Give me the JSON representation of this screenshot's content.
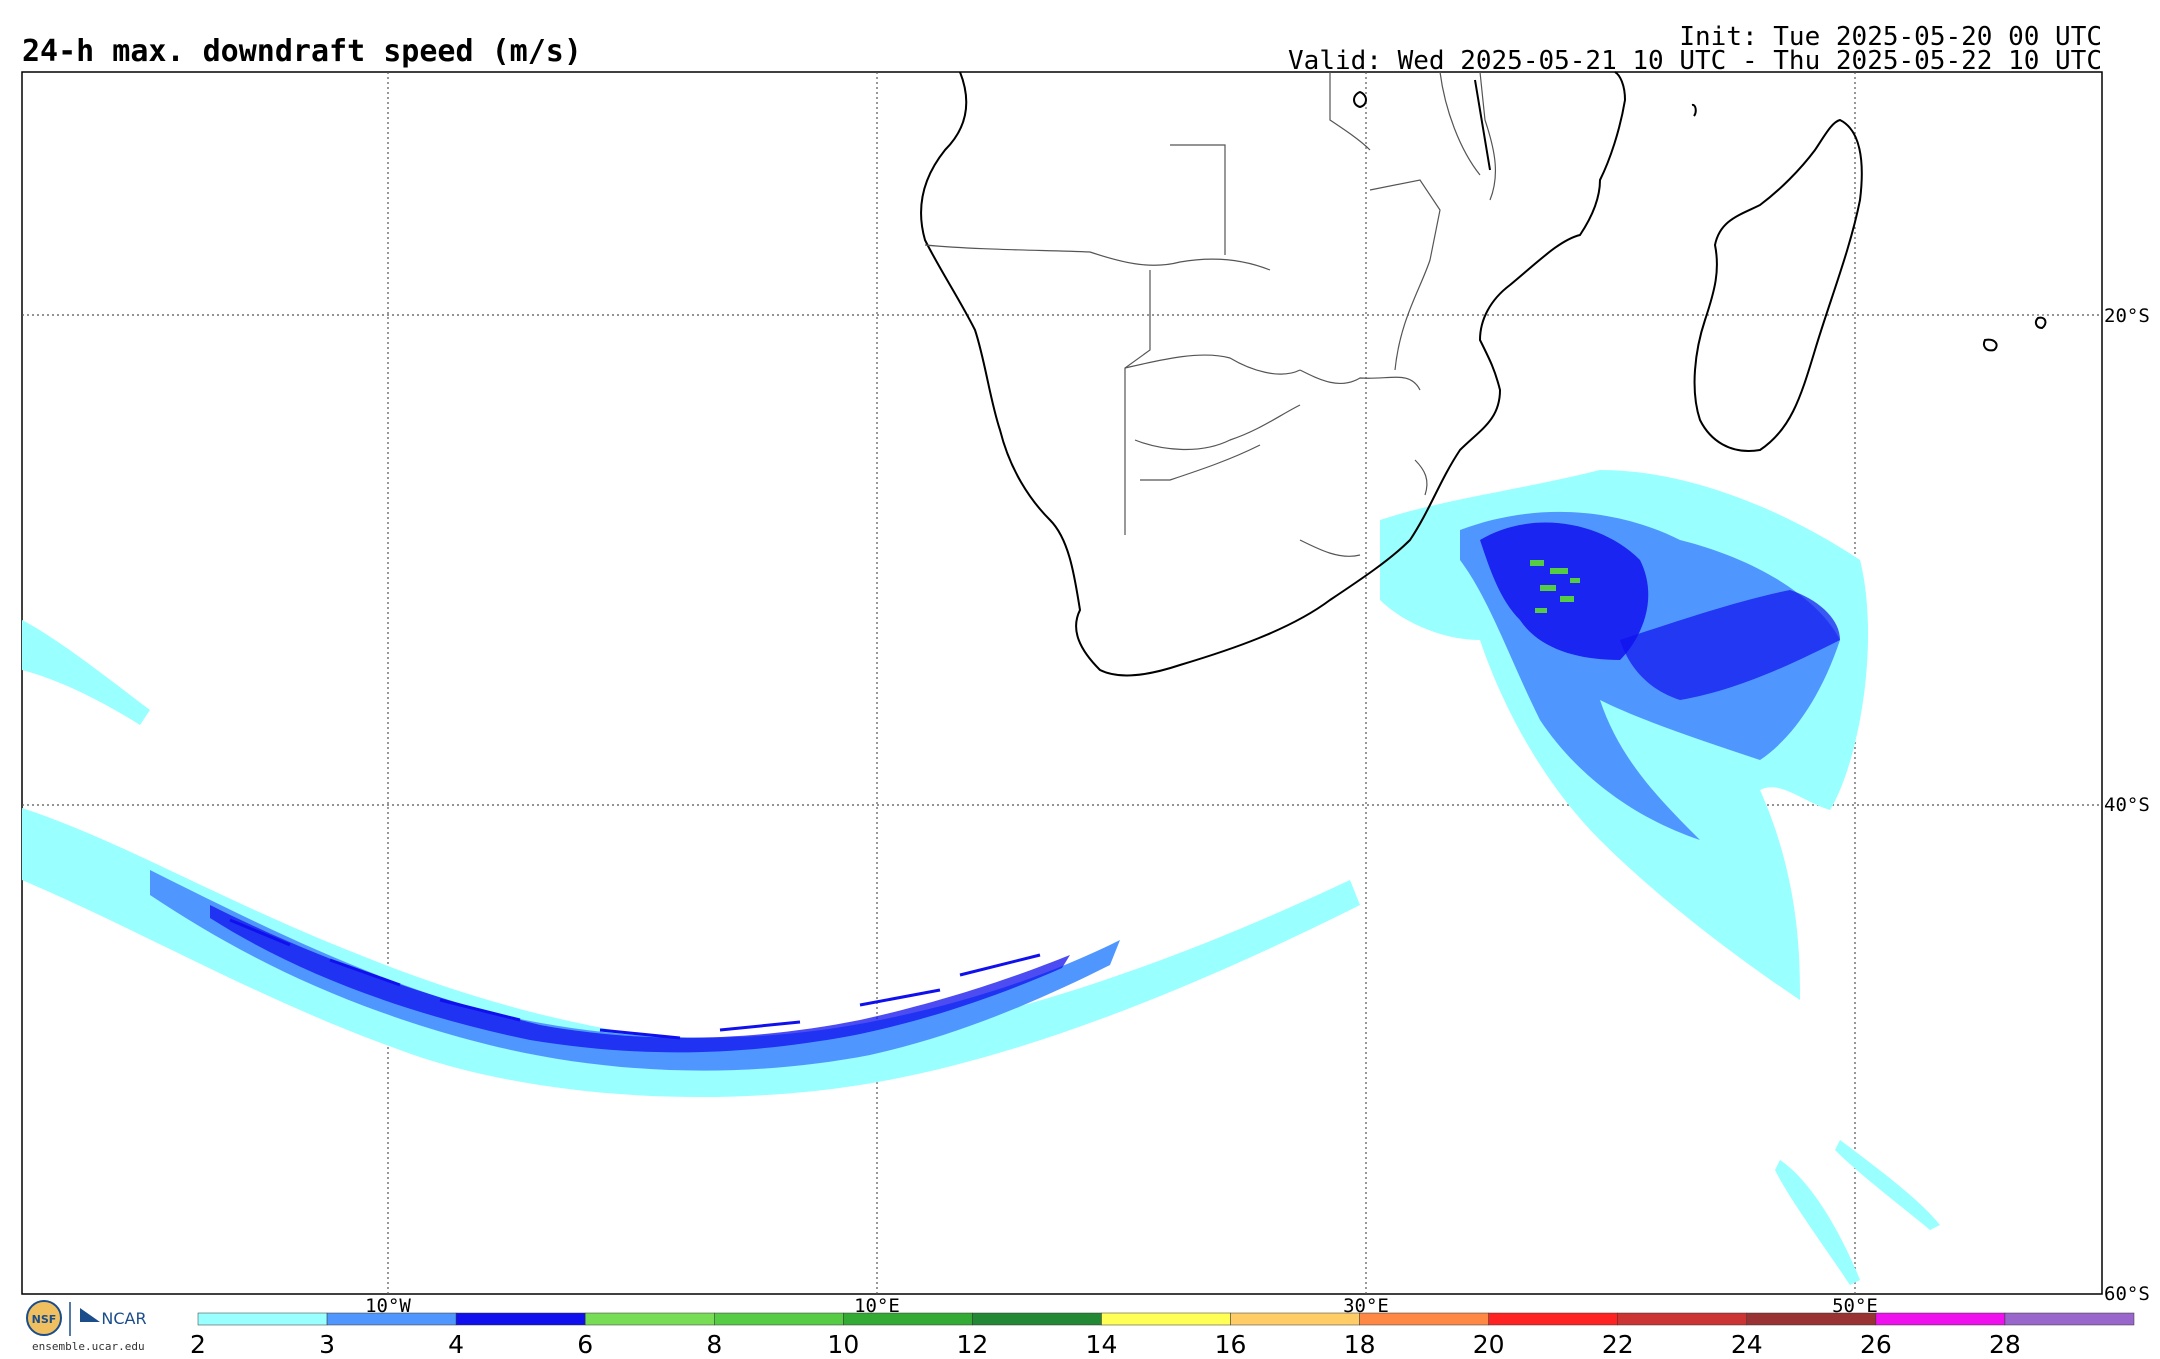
{
  "header": {
    "title": "24-h max. downdraft speed (m/s)",
    "init": "Init: Tue 2025-05-20 00 UTC",
    "valid": "Valid: Wed 2025-05-21 10 UTC - Thu 2025-05-22 10 UTC"
  },
  "map": {
    "lon_labels": [
      "10°W",
      "10°E",
      "30°E",
      "50°E"
    ],
    "lat_labels": [
      "20°S",
      "40°S",
      "60°S"
    ]
  },
  "colorbar": {
    "ticks": [
      "2",
      "3",
      "4",
      "6",
      "8",
      "10",
      "12",
      "14",
      "16",
      "18",
      "20",
      "22",
      "24",
      "26",
      "28"
    ],
    "colors": [
      "#99ffff",
      "#4f97ff",
      "#1010ee",
      "#77dd55",
      "#55cc44",
      "#33aa33",
      "#228833",
      "#ffff55",
      "#ffcc66",
      "#ff8844",
      "#ff2222",
      "#cc3333",
      "#993333",
      "#ee11ee",
      "#9966cc"
    ]
  },
  "footer": {
    "logo_nsf": "NSF",
    "logo_ncar": "NCAR",
    "site": "ensemble.ucar.edu"
  }
}
